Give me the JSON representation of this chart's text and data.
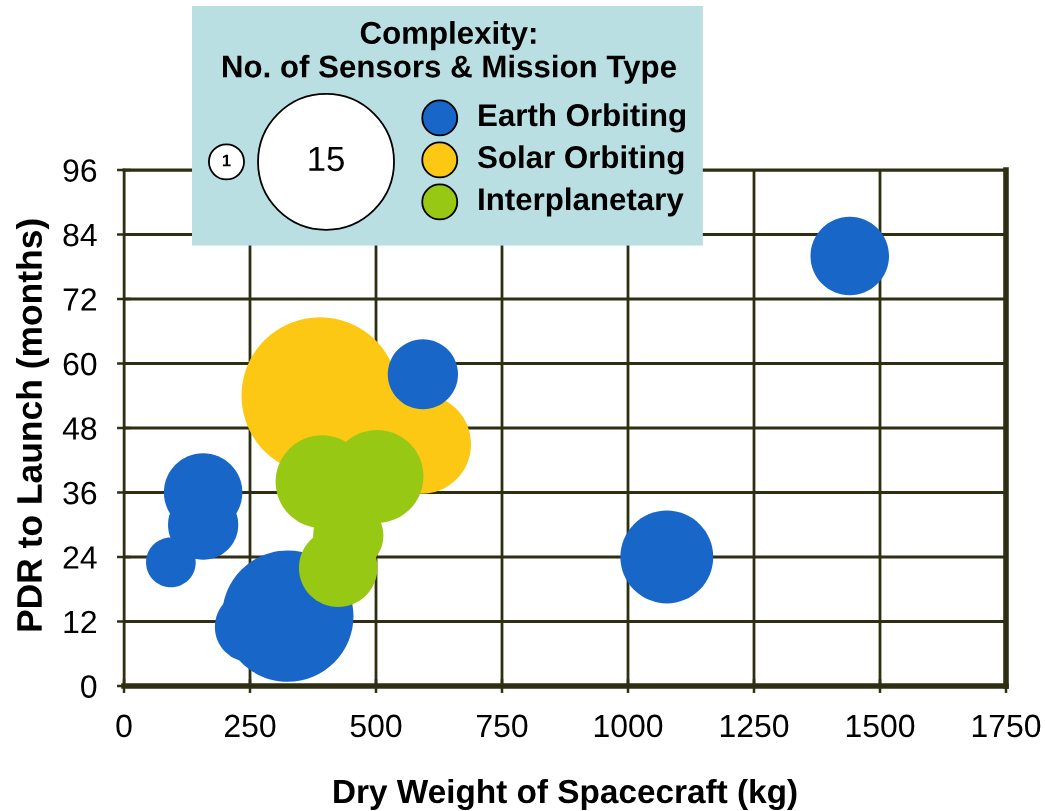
{
  "chart_data": {
    "type": "bubble",
    "xlabel": "Dry Weight of Spacecraft (kg)",
    "ylabel": "PDR to Launch (months)",
    "legend_title": "Complexity:\nNo. of Sensors & Mission Type",
    "size_legend": [
      1,
      15
    ],
    "xlim": [
      0,
      1750
    ],
    "xticks": [
      0,
      250,
      500,
      750,
      1000,
      1250,
      1500,
      1750
    ],
    "ylim": [
      0,
      96
    ],
    "yticks": [
      0,
      12,
      24,
      36,
      48,
      60,
      72,
      84,
      96
    ],
    "grid": true,
    "legend": "top left",
    "marker": "circle",
    "series": [
      {
        "name": "Earth Orbiting",
        "color": "#1766c8",
        "x": [
          1440,
          1077,
          593,
          325,
          250,
          157,
          157,
          93
        ],
        "values": [
          80,
          24,
          58,
          13,
          11,
          36,
          30,
          23
        ],
        "sizes": [
          5,
          7,
          4,
          14,
          4,
          5,
          4,
          2
        ]
      },
      {
        "name": "Solar Orbiting",
        "color": "#fcc814",
        "x": [
          389,
          590
        ],
        "values": [
          54,
          45
        ],
        "sizes": [
          20,
          8
        ]
      },
      {
        "name": "Interplanetary",
        "color": "#97c914",
        "x": [
          393,
          502,
          445,
          425
        ],
        "values": [
          38,
          39,
          28,
          22
        ],
        "sizes": [
          7,
          7,
          4,
          5
        ]
      }
    ]
  }
}
